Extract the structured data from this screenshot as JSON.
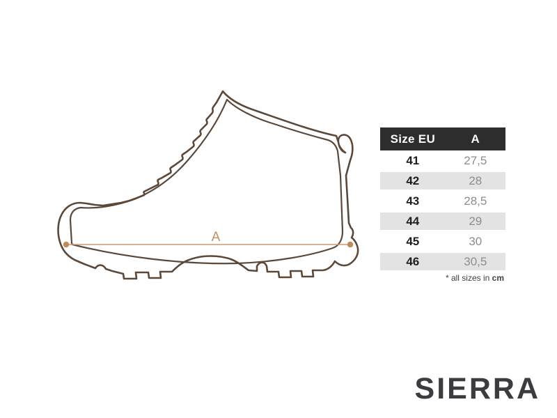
{
  "brand": {
    "logo": "SIERRA"
  },
  "diagram": {
    "measure_label": "A",
    "outline_color": "#5c4839",
    "measure_line_color": "#c89a72",
    "measure_dot_color": "#c18a58",
    "measure_label_color": "#bf8e63"
  },
  "size_table": {
    "columns": {
      "size": "Size EU",
      "a": "A"
    },
    "rows": [
      {
        "size": "41",
        "a": "27,5"
      },
      {
        "size": "42",
        "a": "28"
      },
      {
        "size": "43",
        "a": "28,5"
      },
      {
        "size": "44",
        "a": "29"
      },
      {
        "size": "45",
        "a": "30"
      },
      {
        "size": "46",
        "a": "30,5"
      }
    ],
    "footnote": {
      "prefix": "* all sizes in ",
      "unit": "cm"
    },
    "header_bg": "#2d2d2d",
    "alt_row_bg": "#e3e3e3"
  }
}
